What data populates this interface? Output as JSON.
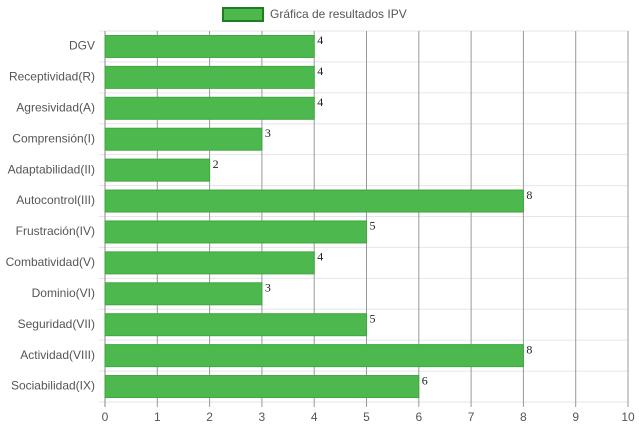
{
  "chart_data": {
    "type": "bar",
    "orientation": "horizontal",
    "legend": "Gráfica de resultados IPV",
    "categories": [
      "DGV",
      "Receptividad(R)",
      "Agresividad(A)",
      "Comprensión(I)",
      "Adaptabilidad(II)",
      "Autocontrol(III)",
      "Frustración(IV)",
      "Combatividad(V)",
      "Dominio(VI)",
      "Seguridad(VII)",
      "Actividad(VIII)",
      "Sociabilidad(IX)"
    ],
    "values": [
      4,
      4,
      4,
      3,
      2,
      8,
      5,
      4,
      3,
      5,
      8,
      6
    ],
    "color": "#4db84d",
    "xlim": [
      0,
      10
    ],
    "xticks": [
      0,
      1,
      2,
      3,
      4,
      5,
      6,
      7,
      8,
      9,
      10
    ],
    "grid": true
  }
}
